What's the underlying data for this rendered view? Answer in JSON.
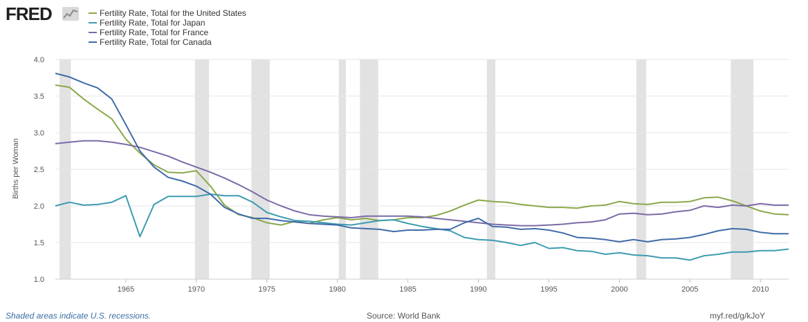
{
  "header": {
    "logo_text": "FRED",
    "logo_icon": "trend-chart-icon"
  },
  "colors": {
    "us": "#8aa84a",
    "japan": "#3c9bb0",
    "france": "#7b6aa6",
    "canada": "#3f6ba8",
    "recession": "#e2e2e2",
    "grid": "#e6e6e6"
  },
  "footer": {
    "recession_note": "Shaded areas indicate U.S. recessions.",
    "source": "Source: World Bank",
    "short_url": "myf.red/g/kJoY"
  },
  "chart_data": {
    "type": "line",
    "title": "",
    "xlabel": "",
    "ylabel": "Births per Woman",
    "xlim": [
      1960,
      2012
    ],
    "ylim": [
      1.0,
      4.0
    ],
    "xticks": [
      1965,
      1970,
      1975,
      1980,
      1985,
      1990,
      1995,
      2000,
      2005,
      2010
    ],
    "yticks": [
      "1.0",
      "1.5",
      "2.0",
      "2.5",
      "3.0",
      "3.5",
      "4.0"
    ],
    "grid": "horizontal",
    "legend_position": "top-left",
    "recessions": [
      [
        1960.3,
        1961.1
      ],
      [
        1969.9,
        1970.9
      ],
      [
        1973.9,
        1975.2
      ],
      [
        1980.1,
        1980.6
      ],
      [
        1981.6,
        1982.9
      ],
      [
        1990.6,
        1991.2
      ],
      [
        2001.2,
        2001.9
      ],
      [
        2007.9,
        2009.5
      ]
    ],
    "x": [
      1960,
      1961,
      1962,
      1963,
      1964,
      1965,
      1966,
      1967,
      1968,
      1969,
      1970,
      1971,
      1972,
      1973,
      1974,
      1975,
      1976,
      1977,
      1978,
      1979,
      1980,
      1981,
      1982,
      1983,
      1984,
      1985,
      1986,
      1987,
      1988,
      1989,
      1990,
      1991,
      1992,
      1993,
      1994,
      1995,
      1996,
      1997,
      1998,
      1999,
      2000,
      2001,
      2002,
      2003,
      2004,
      2005,
      2006,
      2007,
      2008,
      2009,
      2010,
      2011,
      2012
    ],
    "series": [
      {
        "name": "Fertility Rate, Total for the United States",
        "color_key": "us",
        "values": [
          3.65,
          3.62,
          3.46,
          3.32,
          3.19,
          2.91,
          2.72,
          2.56,
          2.46,
          2.45,
          2.48,
          2.27,
          2.01,
          1.88,
          1.84,
          1.77,
          1.74,
          1.79,
          1.76,
          1.81,
          1.84,
          1.81,
          1.83,
          1.8,
          1.81,
          1.84,
          1.84,
          1.87,
          1.93,
          2.01,
          2.08,
          2.06,
          2.05,
          2.02,
          2.0,
          1.98,
          1.98,
          1.97,
          2.0,
          2.01,
          2.06,
          2.03,
          2.02,
          2.05,
          2.05,
          2.06,
          2.11,
          2.12,
          2.07,
          2.0,
          1.93,
          1.89,
          1.88
        ]
      },
      {
        "name": "Fertility Rate, Total for Japan",
        "color_key": "japan",
        "values": [
          2.0,
          2.05,
          2.01,
          2.02,
          2.05,
          2.14,
          1.58,
          2.02,
          2.13,
          2.13,
          2.13,
          2.16,
          2.14,
          2.14,
          2.05,
          1.91,
          1.85,
          1.8,
          1.79,
          1.77,
          1.75,
          1.74,
          1.77,
          1.8,
          1.81,
          1.76,
          1.72,
          1.69,
          1.66,
          1.57,
          1.54,
          1.53,
          1.5,
          1.46,
          1.5,
          1.42,
          1.43,
          1.39,
          1.38,
          1.34,
          1.36,
          1.33,
          1.32,
          1.29,
          1.29,
          1.26,
          1.32,
          1.34,
          1.37,
          1.37,
          1.39,
          1.39,
          1.41
        ]
      },
      {
        "name": "Fertility Rate, Total for France",
        "color_key": "france",
        "values": [
          2.85,
          2.87,
          2.89,
          2.89,
          2.87,
          2.84,
          2.8,
          2.74,
          2.68,
          2.6,
          2.53,
          2.46,
          2.38,
          2.29,
          2.19,
          2.08,
          2.0,
          1.93,
          1.88,
          1.86,
          1.85,
          1.84,
          1.86,
          1.86,
          1.86,
          1.86,
          1.85,
          1.83,
          1.81,
          1.79,
          1.77,
          1.75,
          1.74,
          1.73,
          1.73,
          1.74,
          1.75,
          1.77,
          1.78,
          1.81,
          1.89,
          1.9,
          1.88,
          1.89,
          1.92,
          1.94,
          2.0,
          1.98,
          2.01,
          2.0,
          2.03,
          2.01,
          2.01
        ]
      },
      {
        "name": "Fertility Rate, Total for Canada",
        "color_key": "canada",
        "values": [
          3.81,
          3.76,
          3.68,
          3.61,
          3.46,
          3.11,
          2.75,
          2.53,
          2.39,
          2.34,
          2.27,
          2.16,
          1.98,
          1.89,
          1.83,
          1.83,
          1.8,
          1.78,
          1.76,
          1.75,
          1.74,
          1.7,
          1.69,
          1.68,
          1.65,
          1.67,
          1.67,
          1.68,
          1.68,
          1.77,
          1.83,
          1.72,
          1.71,
          1.68,
          1.69,
          1.67,
          1.63,
          1.57,
          1.56,
          1.54,
          1.51,
          1.54,
          1.51,
          1.54,
          1.55,
          1.57,
          1.61,
          1.66,
          1.69,
          1.68,
          1.64,
          1.62,
          1.62
        ]
      }
    ]
  }
}
